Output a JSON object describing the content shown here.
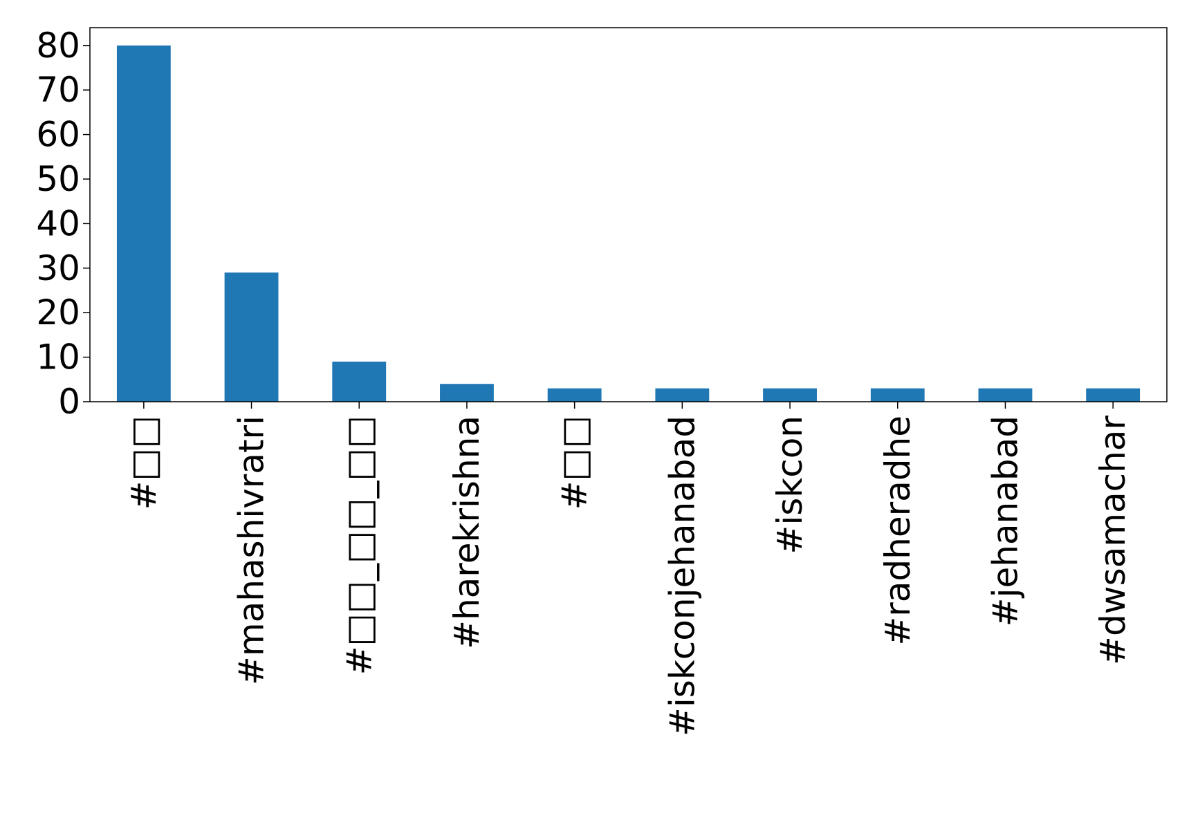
{
  "chart_data": {
    "type": "bar",
    "title": "",
    "xlabel": "",
    "ylabel": "",
    "categories": [
      "#□□",
      "#mahashivratri",
      "#□□_□□_□□",
      "#harekrishna",
      "#□□",
      "#iskconjehanabad",
      "#iskcon",
      "#radheradhe",
      "#jehanabad",
      "#dwsamachar"
    ],
    "values": [
      80,
      29,
      9,
      4,
      3,
      3,
      3,
      3,
      3,
      3
    ],
    "ylim": [
      0,
      84
    ],
    "yticks": [
      0,
      10,
      20,
      30,
      40,
      50,
      60,
      70,
      80
    ],
    "ytick_labels": [
      "0",
      "10",
      "20",
      "30",
      "40",
      "50",
      "60",
      "70",
      "80"
    ],
    "bar_color": "#1f77b4",
    "grid": false,
    "legend": "none"
  }
}
